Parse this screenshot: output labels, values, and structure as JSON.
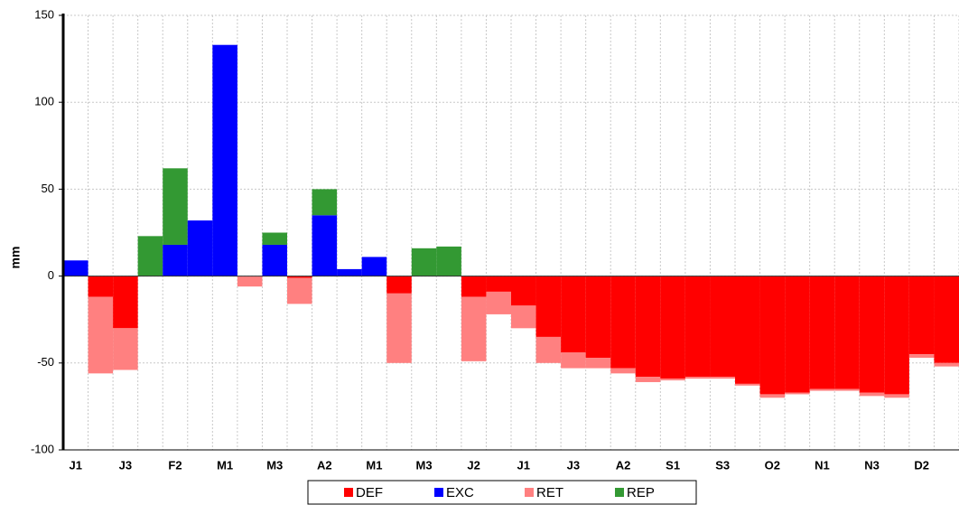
{
  "chart_data": {
    "type": "bar",
    "stacked": true,
    "ylabel": "mm",
    "categories": [
      "J1",
      null,
      "J3",
      null,
      "F2",
      null,
      "M1",
      null,
      "M3",
      null,
      "A2",
      null,
      "M1",
      null,
      "M3",
      null,
      "J2",
      null,
      "J1",
      null,
      "J3",
      null,
      "A2",
      null,
      "S1",
      null,
      "S3",
      null,
      "O2",
      null,
      "N1",
      null,
      "N3",
      null,
      "D2",
      null
    ],
    "series": [
      {
        "name": "DEF",
        "color": "#ff0000",
        "values": [
          0,
          -12,
          -30,
          0,
          0,
          0,
          0,
          0,
          0,
          -1,
          0,
          0,
          0,
          -10,
          0,
          0,
          -12,
          -9,
          -17,
          -35,
          -44,
          -47,
          -53,
          -58,
          -59,
          -58,
          -58,
          -62,
          -68,
          -67,
          -65,
          -65,
          -67,
          -68,
          -45,
          -50
        ]
      },
      {
        "name": "EXC",
        "color": "#0000ff",
        "values": [
          9,
          0,
          0,
          0,
          18,
          32,
          133,
          0,
          18,
          0,
          35,
          4,
          11,
          0,
          0,
          0,
          0,
          0,
          0,
          0,
          0,
          0,
          0,
          0,
          0,
          0,
          0,
          0,
          0,
          0,
          0,
          0,
          0,
          0,
          0,
          0
        ]
      },
      {
        "name": "RET",
        "color": "#ff8080",
        "values": [
          0,
          -44,
          -24,
          0,
          0,
          0,
          0,
          -6,
          0,
          -15,
          0,
          0,
          0,
          -40,
          0,
          0,
          -37,
          -13,
          -13,
          -15,
          -9,
          -6,
          -3,
          -3,
          -1,
          -1,
          -1,
          -1,
          -2,
          -1,
          -1,
          -1,
          -2,
          -2,
          -2,
          -2
        ]
      },
      {
        "name": "REP",
        "color": "#339933",
        "values": [
          0,
          0,
          0,
          23,
          44,
          0,
          0,
          0,
          7,
          0,
          15,
          0,
          0,
          0,
          16,
          17,
          0,
          0,
          0,
          0,
          0,
          0,
          0,
          0,
          0,
          0,
          0,
          0,
          0,
          0,
          0,
          0,
          0,
          0,
          0,
          0
        ]
      }
    ],
    "ylim": [
      -100,
      150
    ],
    "yticks": [
      -100,
      -50,
      0,
      50,
      100,
      150
    ],
    "grid": true,
    "legend": "bottom"
  }
}
